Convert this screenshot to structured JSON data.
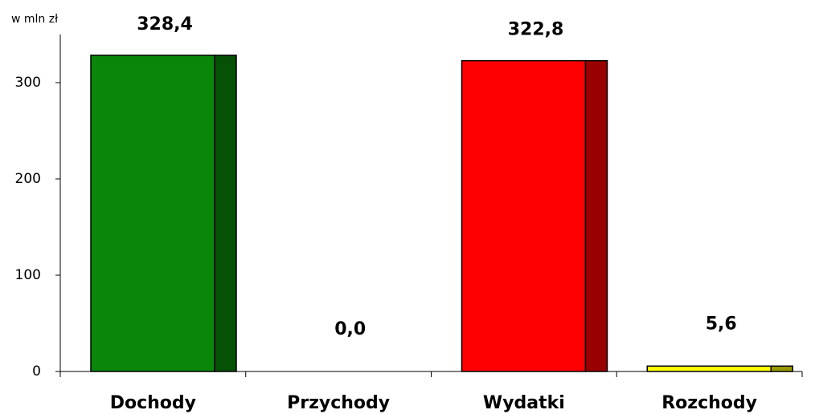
{
  "chart_data": {
    "type": "bar",
    "y_axis_label": "w mln zł",
    "categories": [
      "Dochody",
      "Przychody",
      "Wydatki",
      "Rozchody"
    ],
    "values": [
      328.4,
      0,
      322.8,
      5.6
    ],
    "value_labels": [
      "328,4",
      "0,0",
      "322,8",
      "5,6"
    ],
    "colors": [
      "#0a870a",
      "#0a870a",
      "#ff0000",
      "#ffff00"
    ],
    "ylim": [
      0,
      350
    ],
    "yticks": [
      0,
      100,
      200,
      300
    ],
    "grid": false
  }
}
